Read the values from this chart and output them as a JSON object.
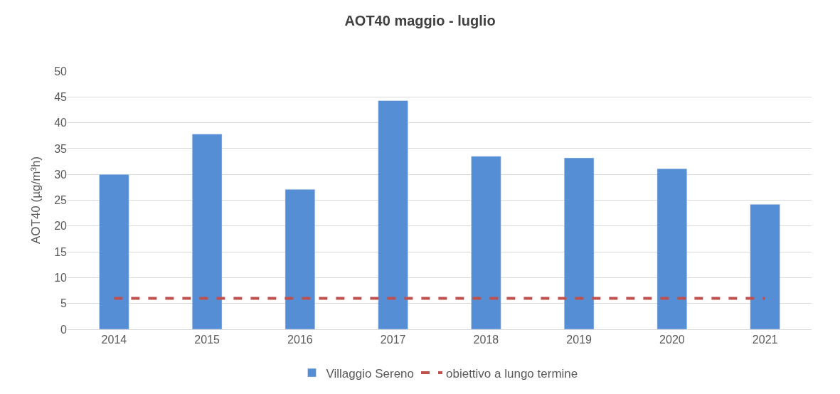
{
  "chart_data": {
    "type": "bar",
    "title": "AOT40 maggio - luglio",
    "ylabel": "AOT40 (µg/m³h)",
    "categories": [
      "2014",
      "2015",
      "2016",
      "2017",
      "2018",
      "2019",
      "2020",
      "2021"
    ],
    "series": [
      {
        "name": "Villaggio Sereno",
        "color": "#558ed5",
        "values": [
          30.0,
          37.8,
          27.1,
          44.3,
          33.5,
          33.2,
          31.1,
          24.2
        ]
      },
      {
        "name": "obiettivo a lungo termine",
        "type": "line",
        "color": "#c0504d",
        "line_style": "dashed",
        "values": [
          6,
          6,
          6,
          6,
          6,
          6,
          6,
          6
        ]
      }
    ],
    "ylim": [
      0,
      50
    ],
    "yticks": [
      0,
      5,
      10,
      15,
      20,
      25,
      30,
      35,
      40,
      45,
      50
    ],
    "grid": "y",
    "legend": "bottom"
  }
}
